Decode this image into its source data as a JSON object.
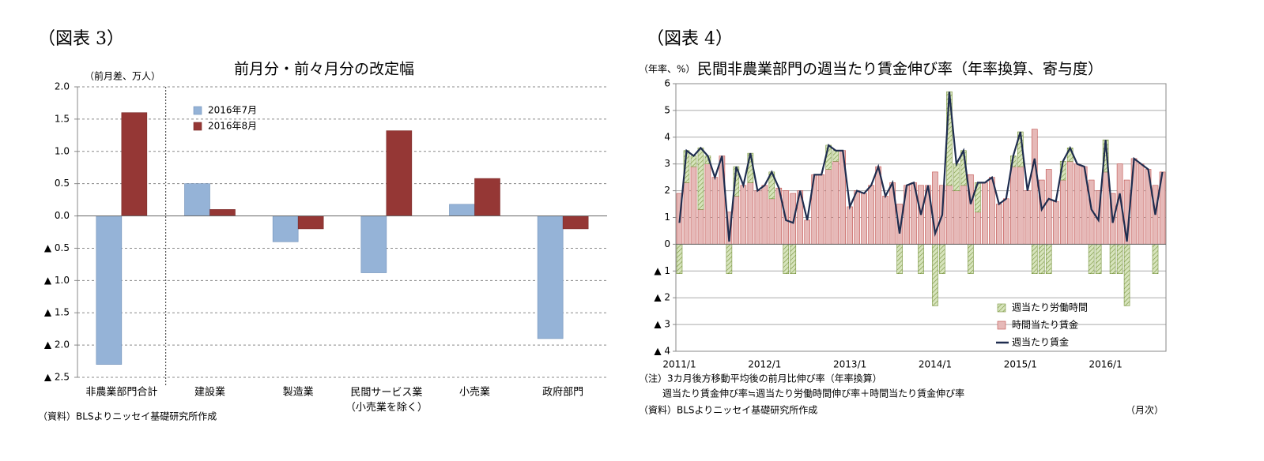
{
  "chart_data": [
    {
      "type": "bar",
      "figure_label": "（図表 3）",
      "title": "前月分・前々月分の改定幅",
      "ylabel": "（前月差、万人）",
      "source": "（資料）BLSよりニッセイ基礎研究所作成",
      "categories": [
        "非農業部門合計",
        "建設業",
        "製造業",
        "民間サービス業\n（小売業を除く）",
        "小売業",
        "政府部門"
      ],
      "series": [
        {
          "name": "2016年7月",
          "color": "#95b3d7",
          "edgecolor": "#6f8fb8",
          "values": [
            -2.3,
            0.5,
            -0.4,
            -0.88,
            0.18,
            -1.9
          ]
        },
        {
          "name": "2016年8月",
          "color": "#953735",
          "edgecolor": "#7a2a28",
          "values": [
            1.6,
            0.1,
            -0.2,
            1.32,
            0.58,
            -0.2
          ]
        }
      ],
      "ylim": [
        -2.5,
        2.0
      ],
      "yticks": [
        {
          "value": 2,
          "label": "2.0"
        },
        {
          "value": 1.5,
          "label": "1.5"
        },
        {
          "value": 1,
          "label": "1.0"
        },
        {
          "value": 0.5,
          "label": "0.5"
        },
        {
          "value": 0,
          "label": "0.0"
        },
        {
          "value": -0.5,
          "label": "▲ 0.5"
        },
        {
          "value": -1,
          "label": "▲ 1.0"
        },
        {
          "value": -1.5,
          "label": "▲ 1.5"
        },
        {
          "value": -2,
          "label": "▲ 2.0"
        },
        {
          "value": -2.5,
          "label": "▲ 2.5"
        }
      ],
      "grid": true,
      "grid_style": "dashed",
      "legend": "upper left"
    },
    {
      "type": "bar",
      "stacked": true,
      "figure_label": "（図表 4）",
      "title": "民間非農業部門の週当たり賃金伸び率（年率換算、寄与度）",
      "ylabel": "（年率、%）",
      "xlabel": "（月次）",
      "notes": [
        "（注）3カ月後方移動平均後の前月比伸び率（年率換算）",
        "週当たり賃金伸び率≒週当たり労働時間伸び率＋時間当たり賃金伸び率"
      ],
      "source": "（資料）BLSよりニッセイ基礎研究所作成",
      "categories": [
        "2011/1",
        null,
        null,
        null,
        null,
        null,
        null,
        null,
        null,
        null,
        null,
        null,
        "2012/1",
        null,
        null,
        null,
        null,
        null,
        null,
        null,
        null,
        null,
        null,
        null,
        "2013/1",
        null,
        null,
        null,
        null,
        null,
        null,
        null,
        null,
        null,
        null,
        null,
        "2014/1",
        null,
        null,
        null,
        null,
        null,
        null,
        null,
        null,
        null,
        null,
        null,
        "2015/1",
        null,
        null,
        null,
        null,
        null,
        null,
        null,
        null,
        null,
        null,
        null,
        "2016/1",
        null,
        null,
        null,
        null,
        null,
        null,
        null,
        null
      ],
      "series": [
        {
          "name": "週当たり労働時間",
          "color": "#d7e4bd",
          "edgecolor": "#77933c",
          "hatch": true,
          "values": [
            -1.1,
            1.2,
            0.4,
            2.3,
            0.3,
            0,
            0,
            -1.1,
            1.1,
            0,
            1.1,
            0,
            0,
            1.0,
            0,
            -1.1,
            -1.1,
            0,
            0,
            0,
            0,
            0.9,
            0.4,
            0,
            0,
            0,
            0,
            0,
            0,
            0,
            0,
            -1.1,
            0,
            0,
            -1.1,
            0,
            -2.3,
            -1.1,
            3.5,
            1.0,
            1.3,
            -1.1,
            1.1,
            0,
            0,
            0,
            0,
            0.4,
            1.3,
            0,
            -1.1,
            -1.1,
            -1.1,
            0,
            0.7,
            0.5,
            0,
            0,
            -1.1,
            -1.1,
            1.2,
            -1.1,
            -1.1,
            -2.3,
            0,
            0,
            0,
            -1.1,
            0
          ]
        },
        {
          "name": "時間当たり賃金",
          "color": "#e6b9b8",
          "edgecolor": "#c0504d",
          "values": [
            1.9,
            2.3,
            2.9,
            1.3,
            3.0,
            2.5,
            3.3,
            1.2,
            1.8,
            2.2,
            2.3,
            2.0,
            2.2,
            1.7,
            2.1,
            2.0,
            1.9,
            2.0,
            0.9,
            2.6,
            2.6,
            2.8,
            3.1,
            3.5,
            1.4,
            2.0,
            1.9,
            2.2,
            2.9,
            1.8,
            2.3,
            1.5,
            2.2,
            2.3,
            2.2,
            2.2,
            2.7,
            2.2,
            2.2,
            2.0,
            2.2,
            2.6,
            1.2,
            2.3,
            2.5,
            1.5,
            1.7,
            2.9,
            2.9,
            2.0,
            4.3,
            2.4,
            2.8,
            1.6,
            2.4,
            3.1,
            3.0,
            2.9,
            2.4,
            2.0,
            2.7,
            1.9,
            3.0,
            2.4,
            3.2,
            3.0,
            2.8,
            2.2,
            2.7
          ]
        },
        {
          "name": "週当たり賃金",
          "type": "line",
          "color": "#1f2d4f",
          "values": [
            0.8,
            3.5,
            3.3,
            3.6,
            3.3,
            2.5,
            3.3,
            0.1,
            2.9,
            2.2,
            3.4,
            2.0,
            2.2,
            2.7,
            2.1,
            0.9,
            0.8,
            2.0,
            0.9,
            2.6,
            2.6,
            3.7,
            3.5,
            3.5,
            1.4,
            2.0,
            1.9,
            2.2,
            2.9,
            1.8,
            2.3,
            0.4,
            2.2,
            2.3,
            1.1,
            2.2,
            0.4,
            1.1,
            5.7,
            3.0,
            3.5,
            1.5,
            2.3,
            2.3,
            2.5,
            1.5,
            1.7,
            3.3,
            4.2,
            2.0,
            3.2,
            1.3,
            1.7,
            1.6,
            3.1,
            3.6,
            3.0,
            2.9,
            1.3,
            0.9,
            3.9,
            0.8,
            1.9,
            0.1,
            3.2,
            3.0,
            2.8,
            1.1,
            2.7
          ]
        }
      ],
      "ylim": [
        -4,
        6
      ],
      "yticks": [
        6,
        5,
        4,
        3,
        2,
        1,
        0,
        {
          "value": -1,
          "label": "▲ 1"
        },
        {
          "value": -2,
          "label": "▲ 2"
        },
        {
          "value": -3,
          "label": "▲ 3"
        },
        {
          "value": -4,
          "label": "▲ 4"
        }
      ],
      "grid": true,
      "grid_style": "solid",
      "legend": "lower right"
    }
  ]
}
